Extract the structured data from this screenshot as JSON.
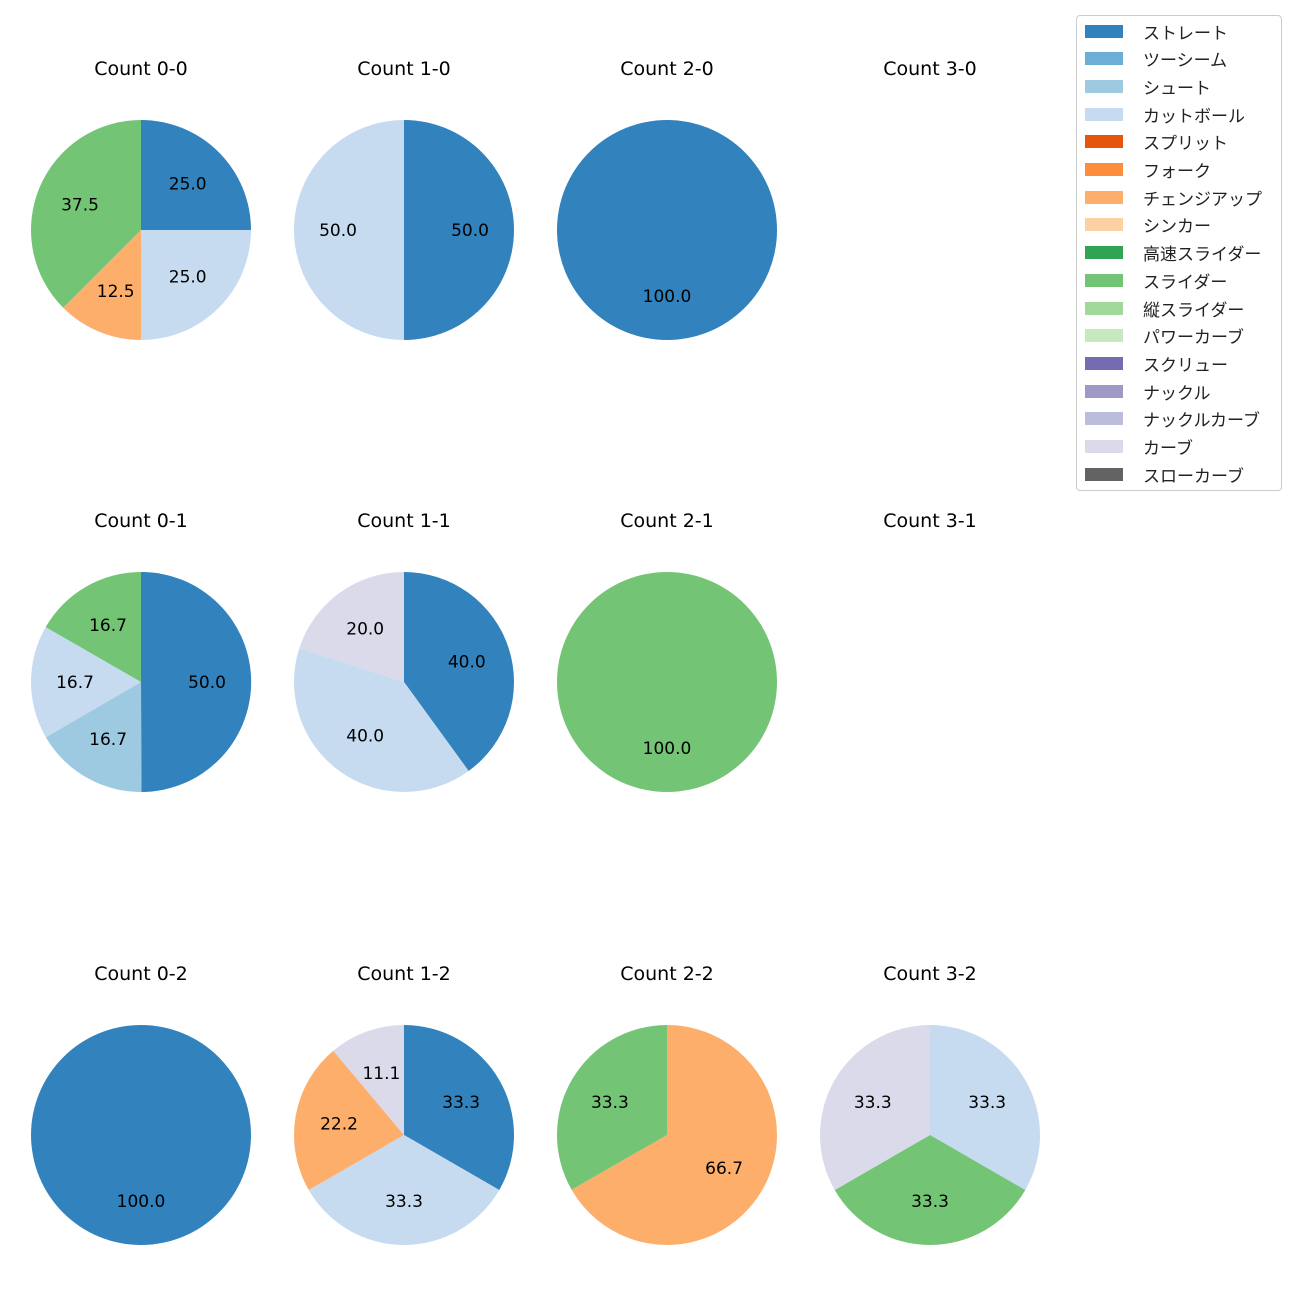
{
  "chart_data": {
    "type": "pie",
    "pitch_types": [
      {
        "name": "ストレート",
        "color": "#3182bd"
      },
      {
        "name": "ツーシーム",
        "color": "#6baed6"
      },
      {
        "name": "シュート",
        "color": "#9ecae1"
      },
      {
        "name": "カットボール",
        "color": "#c6dbef"
      },
      {
        "name": "スプリット",
        "color": "#e6550d"
      },
      {
        "name": "フォーク",
        "color": "#fd8d3c"
      },
      {
        "name": "チェンジアップ",
        "color": "#fdae6b"
      },
      {
        "name": "シンカー",
        "color": "#fdd0a2"
      },
      {
        "name": "高速スライダー",
        "color": "#31a354"
      },
      {
        "name": "スライダー",
        "color": "#74c476"
      },
      {
        "name": "縦スライダー",
        "color": "#a1d99b"
      },
      {
        "name": "パワーカーブ",
        "color": "#c7e9c0"
      },
      {
        "name": "スクリュー",
        "color": "#756bb1"
      },
      {
        "name": "ナックル",
        "color": "#9e9ac8"
      },
      {
        "name": "ナックルカーブ",
        "color": "#bcbddc"
      },
      {
        "name": "カーブ",
        "color": "#dadaeb"
      },
      {
        "name": "スローカーブ",
        "color": "#636363"
      }
    ],
    "charts": [
      {
        "title": "Count 0-0",
        "slices": [
          {
            "pitch": "ストレート",
            "value": 25.0,
            "label": "25.0"
          },
          {
            "pitch": "カットボール",
            "value": 25.0,
            "label": "25.0"
          },
          {
            "pitch": "チェンジアップ",
            "value": 12.5,
            "label": "12.5"
          },
          {
            "pitch": "スライダー",
            "value": 37.5,
            "label": "37.5"
          }
        ]
      },
      {
        "title": "Count 1-0",
        "slices": [
          {
            "pitch": "ストレート",
            "value": 50.0,
            "label": "50.0"
          },
          {
            "pitch": "カットボール",
            "value": 50.0,
            "label": "50.0"
          }
        ]
      },
      {
        "title": "Count 2-0",
        "slices": [
          {
            "pitch": "ストレート",
            "value": 100.0,
            "label": "100.0"
          }
        ]
      },
      {
        "title": "Count 3-0",
        "slices": []
      },
      {
        "title": "Count 0-1",
        "slices": [
          {
            "pitch": "ストレート",
            "value": 50.0,
            "label": "50.0"
          },
          {
            "pitch": "シュート",
            "value": 16.7,
            "label": "16.7"
          },
          {
            "pitch": "カットボール",
            "value": 16.7,
            "label": "16.7"
          },
          {
            "pitch": "スライダー",
            "value": 16.7,
            "label": "16.7"
          }
        ]
      },
      {
        "title": "Count 1-1",
        "slices": [
          {
            "pitch": "ストレート",
            "value": 40.0,
            "label": "40.0"
          },
          {
            "pitch": "カットボール",
            "value": 40.0,
            "label": "40.0"
          },
          {
            "pitch": "カーブ",
            "value": 20.0,
            "label": "20.0"
          }
        ]
      },
      {
        "title": "Count 2-1",
        "slices": [
          {
            "pitch": "スライダー",
            "value": 100.0,
            "label": "100.0"
          }
        ]
      },
      {
        "title": "Count 3-1",
        "slices": []
      },
      {
        "title": "Count 0-2",
        "slices": [
          {
            "pitch": "ストレート",
            "value": 100.0,
            "label": "100.0"
          }
        ]
      },
      {
        "title": "Count 1-2",
        "slices": [
          {
            "pitch": "ストレート",
            "value": 33.3,
            "label": "33.3"
          },
          {
            "pitch": "カットボール",
            "value": 33.3,
            "label": "33.3"
          },
          {
            "pitch": "チェンジアップ",
            "value": 22.2,
            "label": "22.2"
          },
          {
            "pitch": "カーブ",
            "value": 11.1,
            "label": "11.1"
          }
        ]
      },
      {
        "title": "Count 2-2",
        "slices": [
          {
            "pitch": "チェンジアップ",
            "value": 66.7,
            "label": "66.7"
          },
          {
            "pitch": "スライダー",
            "value": 33.3,
            "label": "33.3"
          }
        ]
      },
      {
        "title": "Count 3-2",
        "slices": [
          {
            "pitch": "カットボール",
            "value": 33.3,
            "label": "33.3"
          },
          {
            "pitch": "スライダー",
            "value": 33.3,
            "label": "33.3"
          },
          {
            "pitch": "カーブ",
            "value": 33.3,
            "label": "33.3"
          }
        ]
      }
    ]
  }
}
